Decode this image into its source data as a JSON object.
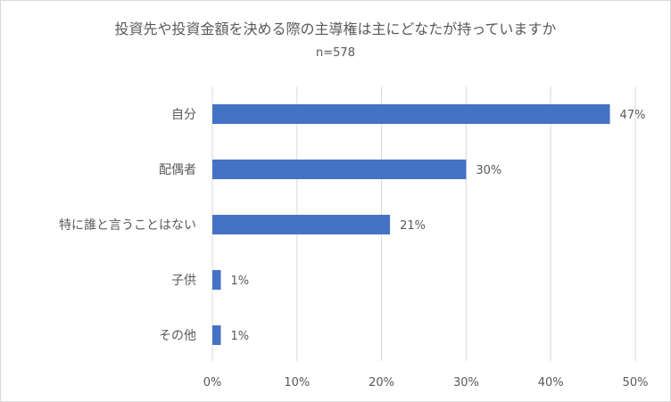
{
  "chart_data": {
    "type": "bar",
    "orientation": "horizontal",
    "title": "投資先や投資金額を決める際の主導権は主にどなたが持っていますか",
    "subtitle": "n=578",
    "categories": [
      "自分",
      "配偶者",
      "特に誰と言うことはない",
      "子供",
      "その他"
    ],
    "values": [
      47,
      30,
      21,
      1,
      1
    ],
    "value_labels": [
      "47%",
      "30%",
      "21%",
      "1%",
      "1%"
    ],
    "x_ticks": [
      "0%",
      "10%",
      "20%",
      "30%",
      "40%",
      "50%"
    ],
    "xlim": [
      0,
      50
    ],
    "grid": true,
    "legend": "none",
    "bar_color": "#4472c4"
  }
}
